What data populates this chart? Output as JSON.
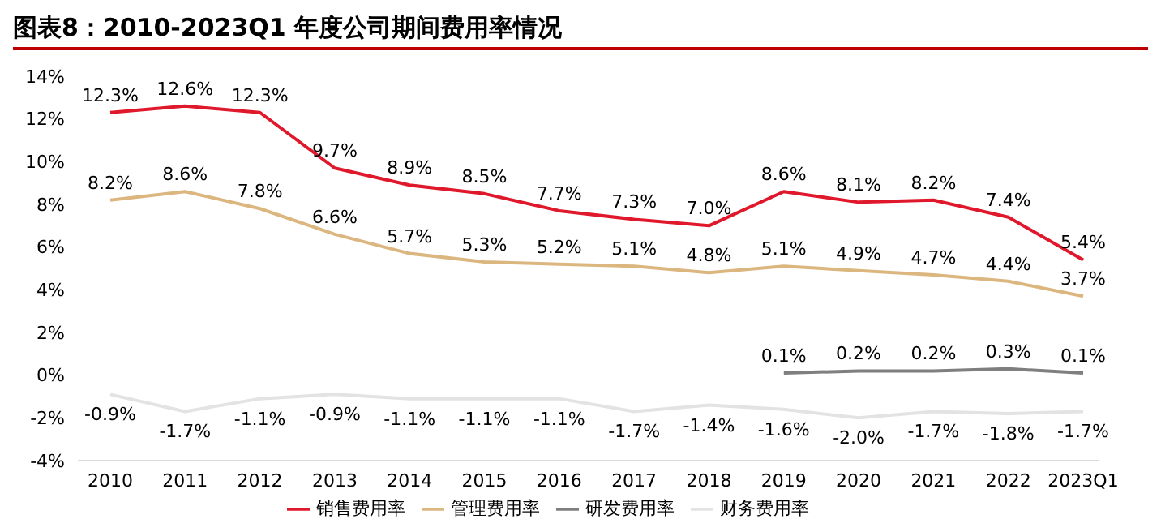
{
  "chart_data": {
    "type": "line",
    "title": "图表8：2010-2023Q1 年度公司期间费用率情况",
    "categories": [
      "2010",
      "2011",
      "2012",
      "2013",
      "2014",
      "2015",
      "2016",
      "2017",
      "2018",
      "2019",
      "2020",
      "2021",
      "2022",
      "2023Q1"
    ],
    "series": [
      {
        "name": "销售费用率",
        "color": "#e0182b",
        "values": [
          12.3,
          12.6,
          12.3,
          9.7,
          8.9,
          8.5,
          7.7,
          7.3,
          7.0,
          8.6,
          8.1,
          8.2,
          7.4,
          5.4
        ],
        "value_labels": [
          "12.3%",
          "12.6%",
          "12.3%",
          "9.7%",
          "8.9%",
          "8.5%",
          "7.7%",
          "7.3%",
          "7.0%",
          "8.6%",
          "8.1%",
          "8.2%",
          "7.4%",
          "5.4%"
        ]
      },
      {
        "name": "管理费用率",
        "color": "#dcb67f",
        "values": [
          8.2,
          8.6,
          7.8,
          6.6,
          5.7,
          5.3,
          5.2,
          5.1,
          4.8,
          5.1,
          4.9,
          4.7,
          4.4,
          3.7
        ],
        "value_labels": [
          "8.2%",
          "8.6%",
          "7.8%",
          "6.6%",
          "5.7%",
          "5.3%",
          "5.2%",
          "5.1%",
          "4.8%",
          "5.1%",
          "4.9%",
          "4.7%",
          "4.4%",
          "3.7%"
        ]
      },
      {
        "name": "研发费用率",
        "color": "#7f7f7f",
        "values": [
          null,
          null,
          null,
          null,
          null,
          null,
          null,
          null,
          null,
          0.1,
          0.2,
          0.2,
          0.3,
          0.1
        ],
        "value_labels": [
          null,
          null,
          null,
          null,
          null,
          null,
          null,
          null,
          null,
          "0.1%",
          "0.2%",
          "0.2%",
          "0.3%",
          "0.1%"
        ]
      },
      {
        "name": "财务费用率",
        "color": "#e3e3e3",
        "values": [
          -0.9,
          -1.7,
          -1.1,
          -0.9,
          -1.1,
          -1.1,
          -1.1,
          -1.7,
          -1.4,
          -1.6,
          -2.0,
          -1.7,
          -1.8,
          -1.7
        ],
        "value_labels": [
          "-0.9%",
          "-1.7%",
          "-1.1%",
          "-0.9%",
          "-1.1%",
          "-1.1%",
          "-1.1%",
          "-1.7%",
          "-1.4%",
          "-1.6%",
          "-2.0%",
          "-1.7%",
          "-1.8%",
          "-1.7%"
        ]
      }
    ],
    "ylim": [
      -4,
      14
    ],
    "yticks": [
      {
        "value": -4,
        "label": "-4%"
      },
      {
        "value": -2,
        "label": "-2%"
      },
      {
        "value": 0,
        "label": "0%"
      },
      {
        "value": 2,
        "label": "2%"
      },
      {
        "value": 4,
        "label": "4%"
      },
      {
        "value": 6,
        "label": "6%"
      },
      {
        "value": 8,
        "label": "8%"
      },
      {
        "value": 10,
        "label": "10%"
      },
      {
        "value": 12,
        "label": "12%"
      },
      {
        "value": 14,
        "label": "14%"
      }
    ],
    "grid": false,
    "legend": "bottom",
    "marker": "none",
    "line_style": "solid"
  }
}
